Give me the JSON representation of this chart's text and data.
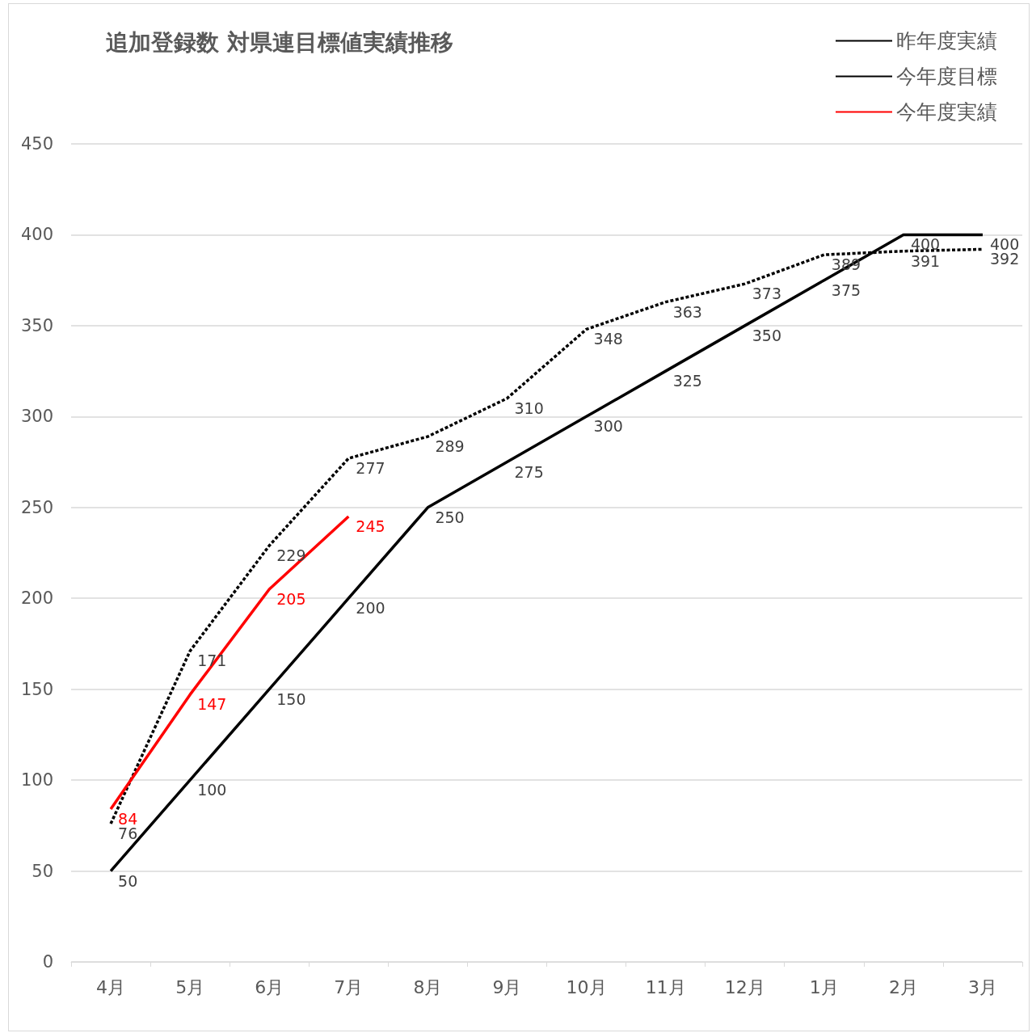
{
  "chart_data": {
    "type": "line",
    "title": "追加登録数 対県連目標値実績推移",
    "categories": [
      "4月",
      "5月",
      "6月",
      "7月",
      "8月",
      "9月",
      "10月",
      "11月",
      "12月",
      "1月",
      "2月",
      "3月"
    ],
    "series": [
      {
        "name": "昨年度実績",
        "color": "#000000",
        "line_style": "dashed",
        "values": [
          76,
          171,
          229,
          277,
          289,
          310,
          348,
          363,
          373,
          389,
          391,
          392
        ]
      },
      {
        "name": "今年度目標",
        "color": "#000000",
        "line_style": "solid",
        "values": [
          50,
          100,
          150,
          200,
          250,
          275,
          300,
          325,
          350,
          375,
          400,
          400
        ]
      },
      {
        "name": "今年度実績",
        "color": "#ff0000",
        "line_style": "solid",
        "values": [
          84,
          147,
          205,
          245,
          null,
          null,
          null,
          null,
          null,
          null,
          null,
          null
        ]
      }
    ],
    "ylim": [
      0,
      450
    ],
    "yticks": [
      0,
      50,
      100,
      150,
      200,
      250,
      300,
      350,
      400,
      450
    ],
    "grid": "y",
    "legend": "top right",
    "marker": "none",
    "data_labels": true
  }
}
